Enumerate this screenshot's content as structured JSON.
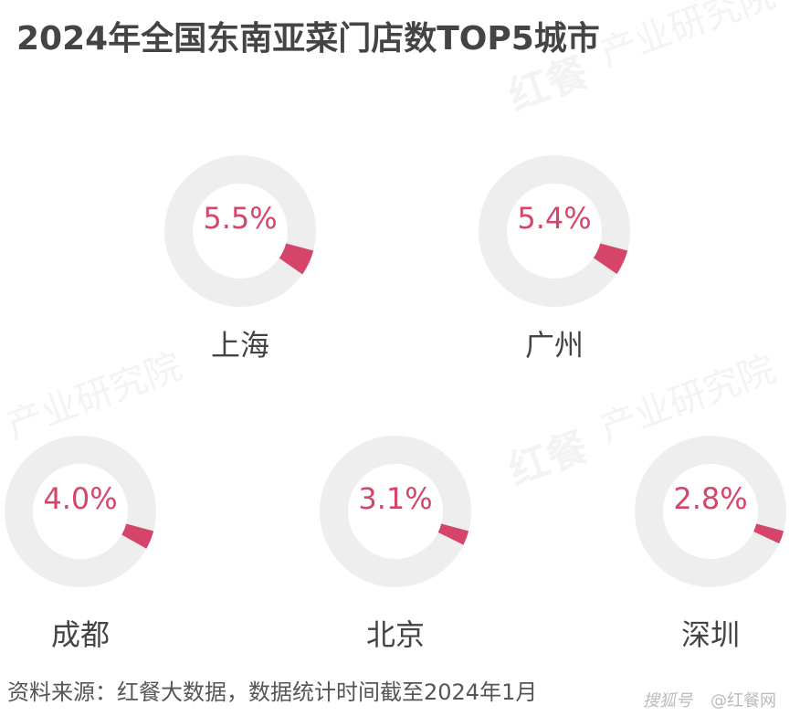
{
  "chart_data": {
    "type": "donut",
    "title": "2024年全国东南亚菜门店数TOP5城市",
    "categories": [
      "上海",
      "广州",
      "成都",
      "北京",
      "深圳"
    ],
    "values": [
      5.5,
      5.4,
      4.0,
      3.1,
      2.8
    ],
    "value_labels": [
      "5.5%",
      "5.4%",
      "4.0%",
      "3.1%",
      "2.8%"
    ],
    "color": "#d5456a",
    "track_color": "#eeeeee",
    "source": "资料来源：红餐大数据，数据统计时间截至2024年1月",
    "watermark": [
      "红餐",
      "产业研究院"
    ],
    "credit": [
      "搜狐号",
      "@红餐网"
    ]
  }
}
